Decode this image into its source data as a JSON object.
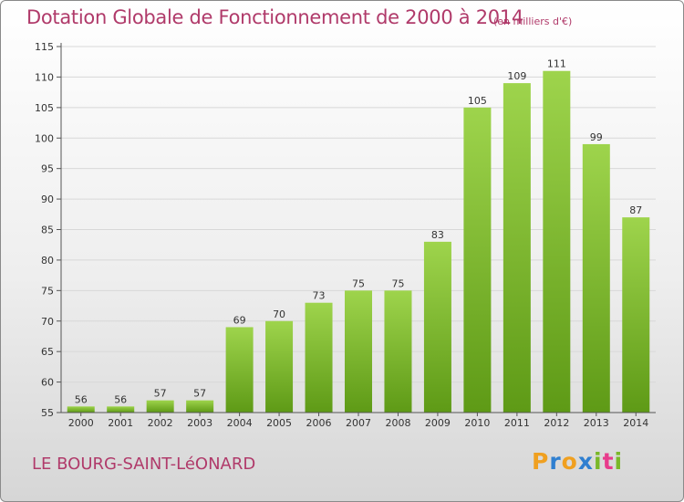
{
  "chart_data": {
    "type": "bar",
    "title": "Dotation Globale de Fonctionnement de 2000 à 2014",
    "subtitle": "(en milliers d'€)",
    "categories": [
      "2000",
      "2001",
      "2002",
      "2003",
      "2004",
      "2005",
      "2006",
      "2007",
      "2008",
      "2009",
      "2010",
      "2011",
      "2012",
      "2013",
      "2014"
    ],
    "values": [
      56,
      56,
      57,
      57,
      69,
      70,
      73,
      75,
      75,
      83,
      105,
      109,
      111,
      99,
      87
    ],
    "ylim": [
      55,
      115
    ],
    "yticks": [
      55,
      60,
      65,
      70,
      75,
      80,
      85,
      90,
      95,
      100,
      105,
      110,
      115
    ],
    "grid": true,
    "colors": {
      "bar_top": "#9ed44c",
      "bar_bottom": "#5e9a16",
      "axis_text": "#333333",
      "grid": "#d8d8d8"
    }
  },
  "commune": "LE BOURG-SAINT-LéONARD",
  "brand": {
    "letters": [
      "P",
      "r",
      "o",
      "x",
      "i",
      "t",
      "i"
    ],
    "colors": [
      "#f0a020",
      "#2f7fd0",
      "#f0a020",
      "#2f7fd0",
      "#7ab829",
      "#e83c8c",
      "#7ab829"
    ]
  },
  "theme": {
    "title_color": "#b03a6a"
  }
}
